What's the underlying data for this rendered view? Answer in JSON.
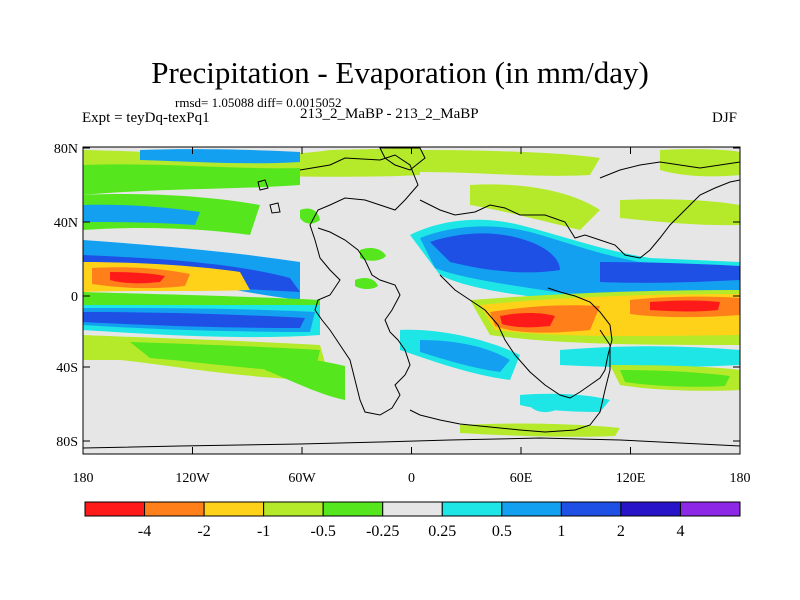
{
  "title": "Precipitation - Evaporation (in mm/day)",
  "stats": "rmsd= 1.05088 diff= 0.0015052",
  "experiment": "Expt = teyDq-texPq1",
  "center_label": "213_2_MaBP - 213_2_MaBP",
  "season": "DJF",
  "map": {
    "lat_ticks": [
      "80N",
      "40N",
      "0",
      "40S",
      "80S"
    ],
    "lon_ticks": [
      "180",
      "120W",
      "60W",
      "0",
      "60E",
      "120E",
      "180"
    ],
    "background_color": "#e6e6e6"
  },
  "colorbar": {
    "labels": [
      "-4",
      "-2",
      "-1",
      "-0.5",
      "-0.25",
      "0.25",
      "0.5",
      "1",
      "2",
      "4"
    ],
    "colors": [
      "#ff1a1a",
      "#ff7f1a",
      "#ffd21a",
      "#b4ea2a",
      "#55e61e",
      "#e6e6e6",
      "#1ee6e6",
      "#14a0f0",
      "#1e50e6",
      "#2814c8",
      "#8c28e6"
    ]
  }
}
